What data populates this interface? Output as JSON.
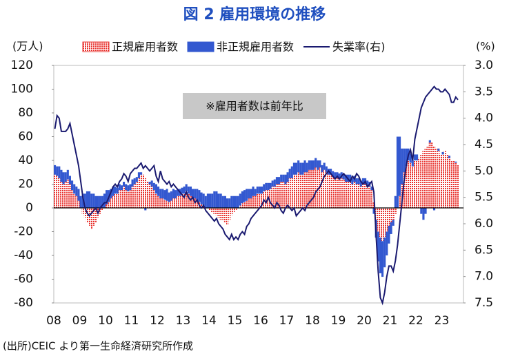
{
  "chart_data": {
    "type": "bar-line",
    "title": "図 2  雇用環境の推移",
    "y_label": "(万人)",
    "y2_label": "(%)",
    "annotation": "※雇用者数は前年比",
    "source": "(出所)CEIC より第一生命経済研究所作成",
    "categories": [
      "08",
      null,
      null,
      null,
      null,
      null,
      null,
      null,
      null,
      null,
      null,
      null,
      "09",
      null,
      null,
      null,
      null,
      null,
      null,
      null,
      null,
      null,
      null,
      null,
      "10",
      null,
      null,
      null,
      null,
      null,
      null,
      null,
      null,
      null,
      null,
      null,
      "11",
      null,
      null,
      null,
      null,
      null,
      null,
      null,
      null,
      null,
      null,
      null,
      "12",
      null,
      null,
      null,
      null,
      null,
      null,
      null,
      null,
      null,
      null,
      null,
      "13",
      null,
      null,
      null,
      null,
      null,
      null,
      null,
      null,
      null,
      null,
      null,
      "14",
      null,
      null,
      null,
      null,
      null,
      null,
      null,
      null,
      null,
      null,
      null,
      "15",
      null,
      null,
      null,
      null,
      null,
      null,
      null,
      null,
      null,
      null,
      null,
      "16",
      null,
      null,
      null,
      null,
      null,
      null,
      null,
      null,
      null,
      null,
      null,
      "17",
      null,
      null,
      null,
      null,
      null,
      null,
      null,
      null,
      null,
      null,
      null,
      "18",
      null,
      null,
      null,
      null,
      null,
      null,
      null,
      null,
      null,
      null,
      null,
      "19",
      null,
      null,
      null,
      null,
      null,
      null,
      null,
      null,
      null,
      null,
      null,
      "20",
      null,
      null,
      null,
      null,
      null,
      null,
      null,
      null,
      null,
      null,
      null,
      "21",
      null,
      null,
      null,
      null,
      null,
      null,
      null,
      null,
      null,
      null,
      null,
      "22",
      null,
      null,
      null,
      null,
      null,
      null,
      null,
      null,
      null,
      null,
      null,
      "23",
      null,
      null,
      null,
      null,
      null,
      null,
      null
    ],
    "series": [
      {
        "name": "正規雇用者数",
        "color": "#e8302c",
        "kind": "bar",
        "values": [
          28,
          27,
          25,
          22,
          20,
          22,
          24,
          20,
          15,
          12,
          10,
          6,
          0,
          -5,
          -8,
          -12,
          -15,
          -18,
          -15,
          -12,
          -8,
          -5,
          -2,
          0,
          3,
          5,
          8,
          10,
          12,
          12,
          15,
          15,
          18,
          15,
          14,
          15,
          18,
          20,
          22,
          25,
          28,
          28,
          25,
          22,
          20,
          18,
          15,
          12,
          10,
          8,
          8,
          7,
          6,
          5,
          6,
          8,
          8,
          10,
          10,
          12,
          12,
          14,
          12,
          10,
          8,
          8,
          6,
          5,
          3,
          2,
          0,
          0,
          -2,
          -4,
          -5,
          -6,
          -8,
          -10,
          -10,
          -12,
          -14,
          -10,
          -6,
          -4,
          -2,
          0,
          2,
          4,
          5,
          6,
          8,
          8,
          10,
          10,
          12,
          12,
          12,
          14,
          15,
          15,
          16,
          18,
          18,
          20,
          20,
          22,
          22,
          20,
          22,
          25,
          25,
          28,
          28,
          30,
          28,
          28,
          30,
          30,
          32,
          32,
          32,
          34,
          32,
          34,
          30,
          32,
          30,
          28,
          28,
          26,
          25,
          25,
          24,
          25,
          24,
          22,
          22,
          22,
          20,
          22,
          20,
          20,
          18,
          20,
          20,
          18,
          18,
          15,
          5,
          -10,
          -20,
          -25,
          -28,
          -25,
          -20,
          -15,
          -12,
          -10,
          -5,
          0,
          10,
          20,
          30,
          35,
          40,
          38,
          35,
          40,
          40,
          42,
          45,
          48,
          50,
          52,
          55,
          55,
          52,
          50,
          48,
          45,
          45,
          48,
          45,
          42,
          40,
          40,
          38,
          36
        ]
      },
      {
        "name": "非正規雇用者数",
        "color": "#3358d0",
        "kind": "bar",
        "values": [
          8,
          8,
          10,
          10,
          10,
          8,
          8,
          7,
          8,
          8,
          8,
          10,
          10,
          12,
          12,
          14,
          14,
          12,
          12,
          10,
          10,
          10,
          10,
          12,
          12,
          10,
          8,
          8,
          6,
          5,
          5,
          4,
          4,
          5,
          5,
          5,
          6,
          5,
          4,
          5,
          2,
          0,
          -2,
          0,
          2,
          5,
          6,
          8,
          8,
          8,
          8,
          8,
          10,
          8,
          8,
          8,
          7,
          6,
          6,
          5,
          6,
          6,
          6,
          8,
          8,
          8,
          10,
          10,
          10,
          10,
          10,
          12,
          12,
          12,
          14,
          14,
          12,
          12,
          10,
          10,
          8,
          8,
          10,
          10,
          10,
          10,
          10,
          10,
          10,
          10,
          8,
          8,
          8,
          6,
          6,
          6,
          6,
          6,
          6,
          6,
          5,
          5,
          6,
          6,
          6,
          6,
          6,
          8,
          8,
          8,
          10,
          10,
          10,
          10,
          10,
          10,
          10,
          8,
          8,
          8,
          8,
          8,
          8,
          6,
          6,
          6,
          5,
          5,
          5,
          5,
          5,
          5,
          5,
          5,
          5,
          6,
          6,
          6,
          5,
          5,
          5,
          5,
          5,
          5,
          5,
          5,
          4,
          3,
          -5,
          -15,
          -25,
          -30,
          -30,
          -25,
          -20,
          -15,
          -10,
          -5,
          10,
          60,
          50,
          30,
          20,
          15,
          10,
          8,
          5,
          5,
          5,
          0,
          -5,
          -10,
          -5,
          0,
          2,
          0,
          -2,
          0,
          2,
          0,
          2,
          0,
          0,
          2,
          0,
          0,
          1,
          0
        ]
      },
      {
        "name": "失業率(右)",
        "color": "#1a1a70",
        "kind": "line",
        "axis": "y2",
        "values": [
          4.2,
          3.95,
          4.0,
          4.25,
          4.25,
          4.25,
          4.2,
          4.1,
          4.3,
          4.5,
          4.7,
          4.9,
          5.2,
          5.5,
          5.7,
          5.8,
          5.85,
          5.8,
          5.75,
          5.7,
          5.8,
          5.7,
          5.65,
          5.6,
          5.6,
          5.5,
          5.4,
          5.3,
          5.25,
          5.3,
          5.2,
          5.15,
          5.05,
          5.1,
          5.2,
          5.05,
          5.0,
          4.95,
          4.95,
          4.9,
          4.85,
          4.95,
          4.9,
          4.95,
          5.0,
          4.95,
          4.9,
          5.1,
          5.2,
          5.0,
          5.15,
          5.2,
          5.25,
          5.2,
          5.3,
          5.25,
          5.3,
          5.35,
          5.4,
          5.45,
          5.5,
          5.4,
          5.5,
          5.55,
          5.5,
          5.6,
          5.55,
          5.65,
          5.7,
          5.65,
          5.75,
          5.8,
          5.85,
          5.9,
          5.95,
          5.9,
          6.0,
          6.05,
          6.1,
          6.2,
          6.25,
          6.3,
          6.2,
          6.3,
          6.25,
          6.3,
          6.2,
          6.15,
          6.2,
          6.05,
          6.0,
          5.9,
          5.85,
          5.8,
          5.75,
          5.7,
          5.65,
          5.55,
          5.6,
          5.5,
          5.6,
          5.65,
          5.7,
          5.6,
          5.65,
          5.75,
          5.8,
          5.7,
          5.65,
          5.7,
          5.75,
          5.7,
          5.85,
          5.8,
          5.75,
          5.7,
          5.75,
          5.65,
          5.6,
          5.55,
          5.5,
          5.4,
          5.35,
          5.3,
          5.2,
          5.1,
          5.05,
          5.0,
          5.05,
          5.1,
          5.15,
          5.1,
          5.15,
          5.1,
          5.05,
          5.1,
          5.15,
          5.2,
          5.1,
          5.15,
          5.05,
          5.1,
          5.2,
          5.25,
          5.2,
          5.3,
          5.25,
          5.2,
          5.4,
          6.2,
          6.9,
          7.4,
          7.5,
          7.3,
          7.0,
          6.8,
          6.8,
          6.9,
          6.7,
          6.4,
          6.0,
          5.6,
          5.2,
          4.9,
          4.7,
          4.6,
          4.8,
          4.4,
          4.2,
          4.0,
          3.8,
          3.7,
          3.6,
          3.55,
          3.5,
          3.45,
          3.4,
          3.45,
          3.45,
          3.5,
          3.5,
          3.45,
          3.5,
          3.55,
          3.7,
          3.7,
          3.6,
          3.65
        ]
      }
    ],
    "ylim": [
      -80,
      120
    ],
    "yticks": [
      -80,
      -60,
      -40,
      -20,
      0,
      20,
      40,
      60,
      80,
      100,
      120
    ],
    "y2lim": [
      7.5,
      3.0
    ],
    "y2ticks": [
      {
        "value": 3,
        "label": "3.0"
      },
      {
        "value": 3.5,
        "label": "3.5"
      },
      {
        "value": 4,
        "label": "4.0"
      },
      {
        "value": 4.5,
        "label": "4.5"
      },
      {
        "value": 5,
        "label": "5.0"
      },
      {
        "value": 5.5,
        "label": "5.5"
      },
      {
        "value": 6,
        "label": "6.0"
      },
      {
        "value": 6.5,
        "label": "6.5"
      },
      {
        "value": 7,
        "label": "7.0"
      },
      {
        "value": 7.5,
        "label": "7.5"
      }
    ],
    "negative_tick_color": "#e02020"
  }
}
